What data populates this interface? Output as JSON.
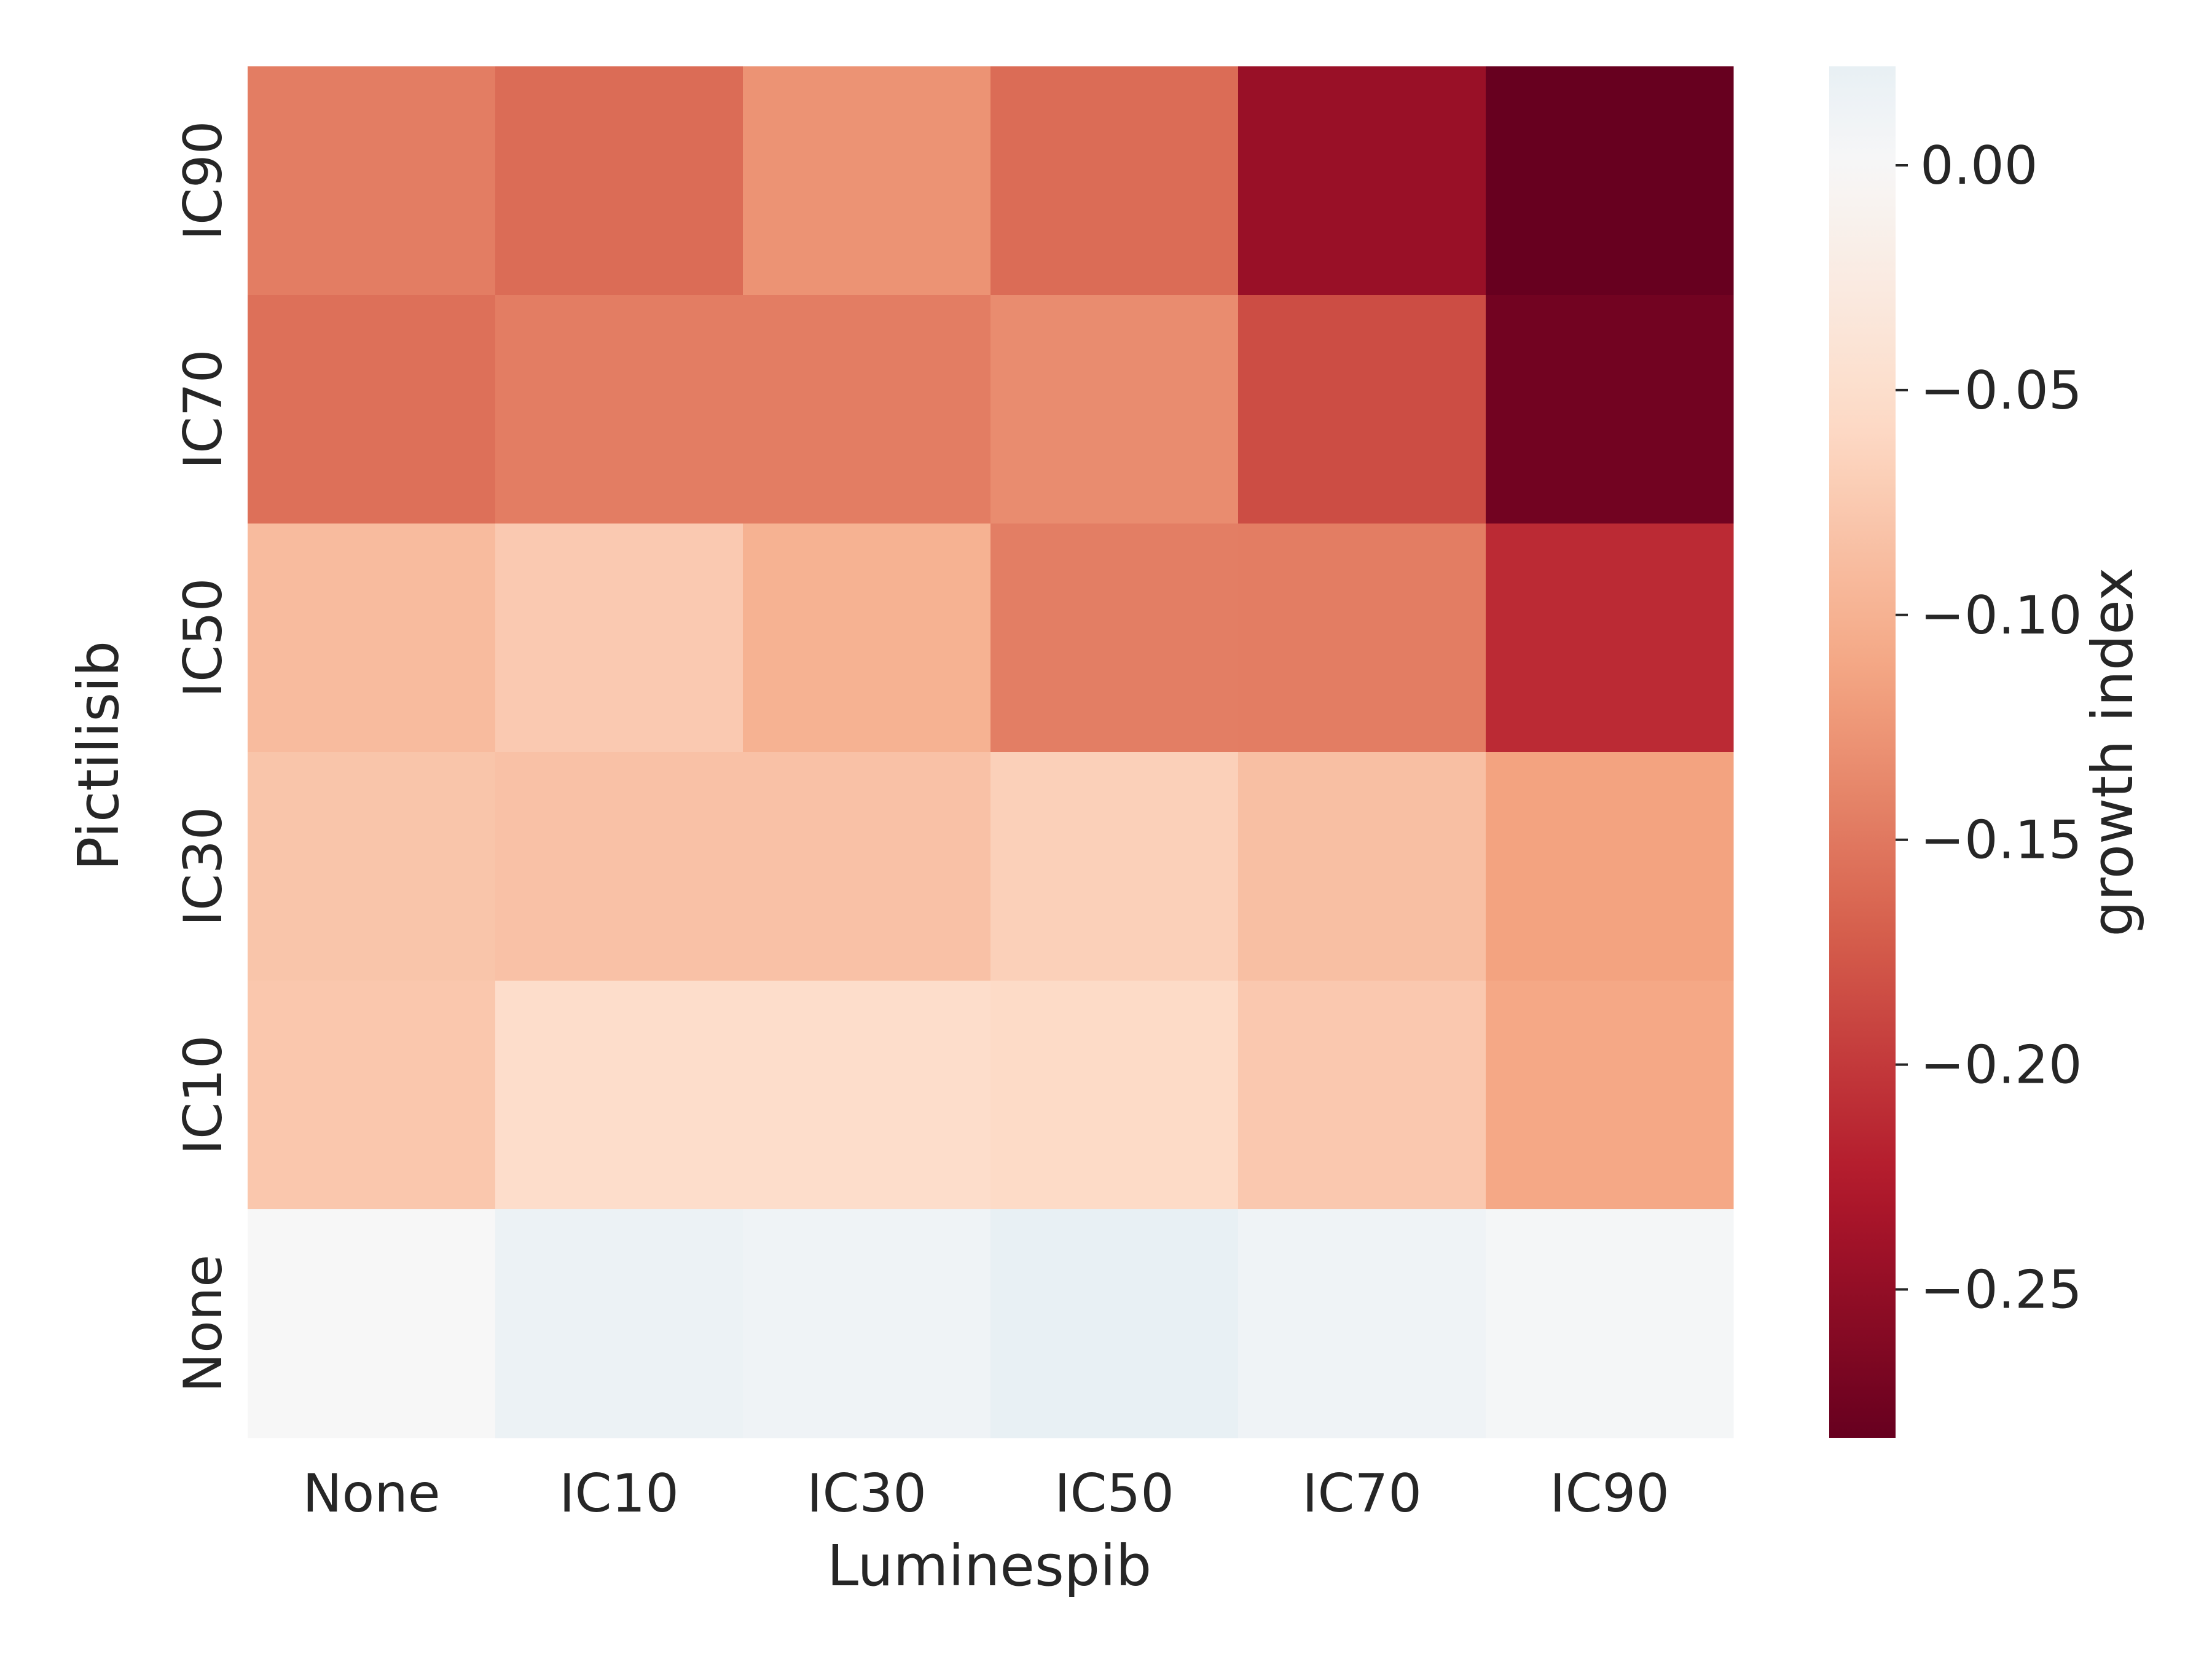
{
  "chart_data": {
    "type": "heatmap",
    "title": "",
    "xlabel": "Luminespib",
    "ylabel": "Pictilisib",
    "x_categories": [
      "None",
      "IC10",
      "IC30",
      "IC50",
      "IC70",
      "IC90"
    ],
    "y_categories": [
      "IC90",
      "IC70",
      "IC50",
      "IC30",
      "IC10",
      "None"
    ],
    "values": [
      [
        -0.146,
        -0.16,
        -0.128,
        -0.16,
        -0.245,
        -0.283
      ],
      [
        -0.157,
        -0.146,
        -0.146,
        -0.134,
        -0.185,
        -0.275
      ],
      [
        -0.09,
        -0.075,
        -0.1,
        -0.145,
        -0.146,
        -0.212
      ],
      [
        -0.08,
        -0.084,
        -0.084,
        -0.068,
        -0.086,
        -0.115
      ],
      [
        -0.078,
        -0.052,
        -0.052,
        -0.057,
        -0.076,
        -0.11
      ],
      [
        0.0,
        0.016,
        0.012,
        0.022,
        0.012,
        0.004
      ]
    ],
    "colorbar": {
      "label": "growth index",
      "colormap": "RdBu",
      "vmin": -0.283,
      "vmax": 0.022,
      "ticks": [
        0.0,
        -0.05,
        -0.1,
        -0.15,
        -0.2,
        -0.25
      ],
      "tick_labels": [
        "0.00",
        "−0.05",
        "−0.10",
        "−0.15",
        "−0.20",
        "−0.25"
      ]
    },
    "grid": false
  }
}
